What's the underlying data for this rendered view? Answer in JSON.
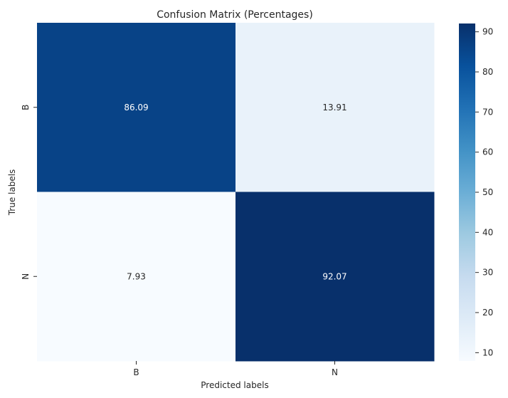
{
  "chart_data": {
    "type": "heatmap",
    "title": "Confusion Matrix (Percentages)",
    "xlabel": "Predicted labels",
    "ylabel": "True labels",
    "x_categories": [
      "B",
      "N"
    ],
    "y_categories": [
      "B",
      "N"
    ],
    "values": [
      [
        86.09,
        13.91
      ],
      [
        7.93,
        92.07
      ]
    ],
    "value_labels": [
      [
        "86.09",
        "13.91"
      ],
      [
        "7.93",
        "92.07"
      ]
    ],
    "colormap": "Blues",
    "color_range": [
      7.93,
      92.07
    ],
    "colorbar": {
      "ticks": [
        10,
        20,
        30,
        40,
        50,
        60,
        70,
        80,
        90
      ],
      "tick_labels": [
        "10",
        "20",
        "30",
        "40",
        "50",
        "60",
        "70",
        "80",
        "90"
      ]
    }
  }
}
